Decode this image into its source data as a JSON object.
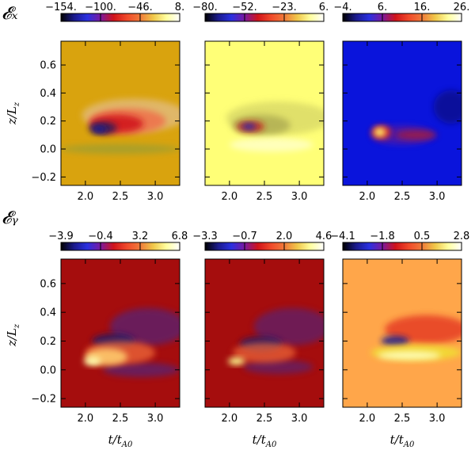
{
  "chart_data": {
    "type": "heatmap",
    "rows": [
      {
        "title": "𝓔ₓ",
        "panels": [
          {
            "colorbar_ticks": [
              "−154.",
              "−100.",
              "−46.",
              "8."
            ],
            "background": "#d9a30e",
            "blobs": [
              {
                "t": 2.7,
                "z": 0.24,
                "rt": 0.75,
                "rz": 0.12,
                "color": "#e6c8b4",
                "opacity": 0.55
              },
              {
                "t": 2.6,
                "z": 0.2,
                "rt": 0.55,
                "rz": 0.09,
                "color": "#f06a4a",
                "opacity": 0.8
              },
              {
                "t": 2.45,
                "z": 0.18,
                "rt": 0.38,
                "rz": 0.065,
                "color": "#d1141a",
                "opacity": 0.9
              },
              {
                "t": 2.25,
                "z": 0.15,
                "rt": 0.2,
                "rz": 0.045,
                "color": "#3a1a55",
                "opacity": 0.95
              },
              {
                "t": 2.2,
                "z": 0.14,
                "rt": 0.1,
                "rz": 0.025,
                "color": "#1a1a8c",
                "opacity": 1.0
              },
              {
                "t": 2.5,
                "z": 0.0,
                "rt": 0.85,
                "rz": 0.035,
                "color": "#8c9e3a",
                "opacity": 0.6
              }
            ]
          },
          {
            "colorbar_ticks": [
              "−80.",
              "−52.",
              "−23.",
              "6."
            ],
            "background": "#ffff77",
            "blobs": [
              {
                "t": 2.7,
                "z": 0.22,
                "rt": 0.75,
                "rz": 0.12,
                "color": "#c8c860",
                "opacity": 0.55
              },
              {
                "t": 2.45,
                "z": 0.17,
                "rt": 0.42,
                "rz": 0.075,
                "color": "#9c9a48",
                "opacity": 0.6
              },
              {
                "t": 2.3,
                "z": 0.16,
                "rt": 0.2,
                "rz": 0.04,
                "color": "#c41a1a",
                "opacity": 0.85
              },
              {
                "t": 2.28,
                "z": 0.16,
                "rt": 0.1,
                "rz": 0.022,
                "color": "#2a2aaa",
                "opacity": 1.0
              },
              {
                "t": 2.6,
                "z": 0.03,
                "rt": 0.6,
                "rz": 0.05,
                "color": "#ffffcc",
                "opacity": 0.8
              }
            ]
          },
          {
            "colorbar_ticks": [
              "−4.",
              "6.",
              "16.",
              "26."
            ],
            "background": "#0a14dc",
            "blobs": [
              {
                "t": 3.2,
                "z": 0.3,
                "rt": 0.25,
                "rz": 0.12,
                "color": "#0a0a70",
                "opacity": 0.6
              },
              {
                "t": 2.5,
                "z": 0.1,
                "rt": 0.45,
                "rz": 0.07,
                "color": "#5a1aa0",
                "opacity": 0.7
              },
              {
                "t": 2.7,
                "z": 0.1,
                "rt": 0.3,
                "rz": 0.035,
                "color": "#b41a2a",
                "opacity": 0.7
              },
              {
                "t": 2.2,
                "z": 0.12,
                "rt": 0.14,
                "rz": 0.05,
                "color": "#e02a1a",
                "opacity": 0.95
              },
              {
                "t": 2.18,
                "z": 0.12,
                "rt": 0.08,
                "rz": 0.03,
                "color": "#fff870",
                "opacity": 1.0
              }
            ]
          }
        ]
      },
      {
        "title": "𝓔ᵧ",
        "panels": [
          {
            "colorbar_ticks": [
              "−3.9",
              "−0.4",
              "3.2",
              "6.8"
            ],
            "background": "#a50d0d",
            "blobs": [
              {
                "t": 2.9,
                "z": 0.3,
                "rt": 0.55,
                "rz": 0.13,
                "color": "#3a2a9a",
                "opacity": 0.55
              },
              {
                "t": 2.8,
                "z": 0.0,
                "rt": 0.55,
                "rz": 0.05,
                "color": "#3a2a9a",
                "opacity": 0.55
              },
              {
                "t": 2.4,
                "z": 0.2,
                "rt": 0.3,
                "rz": 0.05,
                "color": "#1a1a6c",
                "opacity": 0.85
              },
              {
                "t": 2.5,
                "z": 0.12,
                "rt": 0.5,
                "rz": 0.08,
                "color": "#f06a3a",
                "opacity": 0.75
              },
              {
                "t": 2.3,
                "z": 0.09,
                "rt": 0.3,
                "rz": 0.06,
                "color": "#ffd070",
                "opacity": 0.85
              },
              {
                "t": 2.1,
                "z": 0.06,
                "rt": 0.12,
                "rz": 0.03,
                "color": "#ffffb0",
                "opacity": 1.0
              }
            ]
          },
          {
            "colorbar_ticks": [
              "−3.3",
              "−0.7",
              "2.0",
              "4.6"
            ],
            "background": "#a50d0d",
            "blobs": [
              {
                "t": 2.9,
                "z": 0.3,
                "rt": 0.55,
                "rz": 0.13,
                "color": "#3a2a9a",
                "opacity": 0.5
              },
              {
                "t": 2.7,
                "z": 0.02,
                "rt": 0.5,
                "rz": 0.05,
                "color": "#3a2a9a",
                "opacity": 0.5
              },
              {
                "t": 2.45,
                "z": 0.18,
                "rt": 0.3,
                "rz": 0.05,
                "color": "#1a1a6c",
                "opacity": 0.85
              },
              {
                "t": 2.5,
                "z": 0.12,
                "rt": 0.45,
                "rz": 0.07,
                "color": "#f06a3a",
                "opacity": 0.7
              },
              {
                "t": 2.1,
                "z": 0.06,
                "rt": 0.12,
                "rz": 0.025,
                "color": "#ffff90",
                "opacity": 1.0
              }
            ]
          },
          {
            "colorbar_ticks": [
              "−4.1",
              "−1.8",
              "0.5",
              "2.8"
            ],
            "background": "#ffa64a",
            "blobs": [
              {
                "t": 2.85,
                "z": 0.28,
                "rt": 0.6,
                "rz": 0.1,
                "color": "#e0281a",
                "opacity": 0.7
              },
              {
                "t": 2.4,
                "z": 0.2,
                "rt": 0.2,
                "rz": 0.035,
                "color": "#1a1a8c",
                "opacity": 0.9
              },
              {
                "t": 2.7,
                "z": 0.12,
                "rt": 0.65,
                "rz": 0.055,
                "color": "#f0e030",
                "opacity": 0.85
              },
              {
                "t": 2.6,
                "z": 0.1,
                "rt": 0.45,
                "rz": 0.03,
                "color": "#ffffc0",
                "opacity": 0.9
              }
            ]
          }
        ]
      }
    ],
    "x_ticks": [
      "2.0",
      "2.5",
      "3.0"
    ],
    "x_tick_values": [
      2.0,
      2.5,
      3.0
    ],
    "xlim": [
      1.65,
      3.35
    ],
    "y_ticks": [
      "0.6",
      "0.4",
      "0.2",
      "0.0",
      "−0.2"
    ],
    "y_tick_values": [
      0.6,
      0.4,
      0.2,
      0.0,
      -0.2
    ],
    "ylim": [
      -0.26,
      0.77
    ],
    "ylabel": "z/L",
    "ylabel_sub": "z",
    "xlabel": "t/t",
    "xlabel_sub": "A0",
    "colormap": [
      "#000000",
      "#1a1a8c",
      "#2a30e0",
      "#7a1aa0",
      "#d0141a",
      "#f04a2a",
      "#f07a3a",
      "#f0c84a",
      "#ffffa0",
      "#ffffff"
    ]
  }
}
